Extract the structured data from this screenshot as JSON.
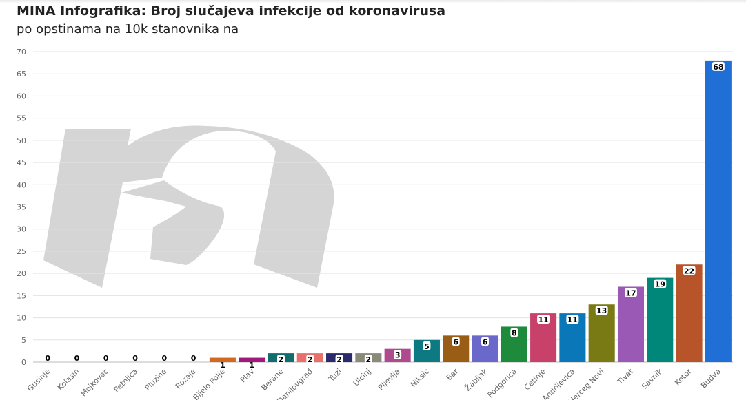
{
  "header": {
    "title": "MINA Infografika: Broj slučajeva infekcije od koronavirusa",
    "subtitle": "po opstinama na 10k stanovnika na"
  },
  "chart_data": {
    "type": "bar",
    "title": "MINA Infografika: Broj slučajeva infekcije od koronavirusa",
    "subtitle": "po opstinama na 10k stanovnika na",
    "xlabel": "",
    "ylabel": "",
    "ylim": [
      0,
      70
    ],
    "yticks": [
      0,
      5,
      10,
      15,
      20,
      25,
      30,
      35,
      40,
      45,
      50,
      55,
      60,
      65,
      70
    ],
    "grid": true,
    "legend": "none",
    "watermark": "MINA logo (grey 'm')",
    "categories": [
      "Gusinje",
      "Kolasin",
      "Mojkovac",
      "Petnjica",
      "Pluzine",
      "Rozaje",
      "Bijelo Polje",
      "Plav",
      "Berane",
      "Danilovgrad",
      "Tuzi",
      "Ulcinj",
      "Pljevlja",
      "Niksic",
      "Bar",
      "Žabljak",
      "Podgorica",
      "Cetinje",
      "Andrijevica",
      "Herceg Novi",
      "Tivat",
      "Savnik",
      "Kotor",
      "Budva"
    ],
    "values": [
      0,
      0,
      0,
      0,
      0,
      0,
      1,
      1,
      2,
      2,
      2,
      2,
      3,
      5,
      6,
      6,
      8,
      11,
      11,
      13,
      17,
      19,
      22,
      68
    ],
    "colors": [
      "#c0c0c0",
      "#c0c0c0",
      "#c0c0c0",
      "#c0c0c0",
      "#c0c0c0",
      "#c0c0c0",
      "#d2691e",
      "#a0187a",
      "#116d6e",
      "#e8706a",
      "#2b2a6b",
      "#8a8a7a",
      "#b04a8e",
      "#0c7a80",
      "#9a5d15",
      "#6b68cc",
      "#1e8a3c",
      "#c8416a",
      "#0a78b8",
      "#7a7a14",
      "#9b59b6",
      "#00877a",
      "#b8542a",
      "#1f6fd6"
    ]
  }
}
